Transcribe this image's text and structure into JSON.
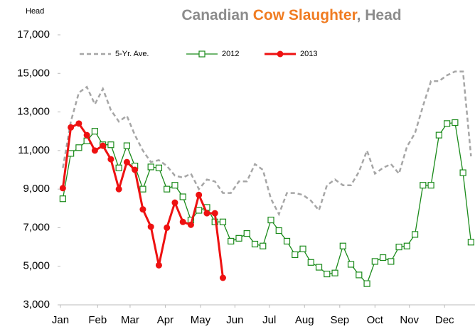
{
  "chart_data": {
    "type": "line",
    "title": [
      "Canadian ",
      "Cow Slaughter",
      ", Head"
    ],
    "title_colors": [
      "#8c8c8c",
      "#f07c22",
      "#8c8c8c"
    ],
    "y_label": "Head",
    "x": [
      1,
      2,
      3,
      4,
      5,
      6,
      7,
      8,
      9,
      10,
      11,
      12,
      13,
      14,
      15,
      16,
      17,
      18,
      19,
      20,
      21,
      22,
      23,
      24,
      25,
      26,
      27,
      28,
      29,
      30,
      31,
      32,
      33,
      34,
      35,
      36,
      37,
      38,
      39,
      40,
      41,
      42,
      43,
      44,
      45,
      46,
      47,
      48,
      49,
      50,
      51,
      52
    ],
    "xlim": [
      0.7,
      52.5
    ],
    "xticks": [
      {
        "value": 0.7,
        "label": "Jan"
      },
      {
        "value": 5.35,
        "label": "Feb"
      },
      {
        "value": 9.4,
        "label": "Mar"
      },
      {
        "value": 13.8,
        "label": "Apr"
      },
      {
        "value": 18.2,
        "label": "May"
      },
      {
        "value": 22.5,
        "label": "Jun"
      },
      {
        "value": 26.8,
        "label": "Jul"
      },
      {
        "value": 31.2,
        "label": "Aug"
      },
      {
        "value": 35.6,
        "label": "Sep"
      },
      {
        "value": 40,
        "label": "Oct"
      },
      {
        "value": 44.3,
        "label": "Nov"
      },
      {
        "value": 48.7,
        "label": "Dec"
      }
    ],
    "ylim": [
      3000,
      17000
    ],
    "yticks": [
      {
        "value": 3000,
        "label": "3,000"
      },
      {
        "value": 5000,
        "label": "5,000"
      },
      {
        "value": 7000,
        "label": "7,000"
      },
      {
        "value": 9000,
        "label": "9,000"
      },
      {
        "value": 11000,
        "label": "11,000"
      },
      {
        "value": 13000,
        "label": "13,000"
      },
      {
        "value": 15000,
        "label": "15,000"
      },
      {
        "value": 17000,
        "label": "17,000"
      }
    ],
    "grid": false,
    "legend": "top-left",
    "series": [
      {
        "name": "5-Yr. Ave.",
        "color": "#a6a6a6",
        "dash": true,
        "marker": "none",
        "values": [
          10100,
          12500,
          14000,
          14300,
          13400,
          14200,
          13100,
          12500,
          12800,
          11800,
          11000,
          10400,
          10500,
          10200,
          9700,
          9600,
          9800,
          9000,
          9500,
          9400,
          8800,
          8800,
          9400,
          9400,
          10300,
          10000,
          8500,
          7700,
          8800,
          8800,
          8700,
          8400,
          7900,
          9200,
          9500,
          9200,
          9200,
          9900,
          11000,
          9800,
          10100,
          10300,
          9800,
          11200,
          11900,
          13300,
          14600,
          14600,
          14900,
          15100,
          15100,
          10700
        ]
      },
      {
        "name": "2012",
        "color": "#1a8a1a",
        "dash": false,
        "marker": "square",
        "values": [
          8500,
          10850,
          11150,
          11500,
          12000,
          11300,
          11300,
          10100,
          11250,
          10200,
          9000,
          10150,
          10100,
          9000,
          9200,
          8600,
          7400,
          7900,
          8050,
          7300,
          7300,
          6300,
          6450,
          6700,
          6150,
          6050,
          7400,
          6850,
          6300,
          5600,
          5900,
          5200,
          4950,
          4600,
          4650,
          6050,
          5100,
          4550,
          4100,
          5250,
          5450,
          5250,
          6000,
          6050,
          6650,
          9200,
          9200,
          11800,
          12400,
          12450,
          9850,
          6250
        ]
      },
      {
        "name": "2013",
        "color": "#ee1111",
        "dash": false,
        "marker": "circle",
        "values": [
          9050,
          12200,
          12400,
          11800,
          11000,
          11250,
          10550,
          9000,
          10400,
          10000,
          7950,
          7050,
          5050,
          7000,
          8300,
          7300,
          7150,
          8700,
          7750,
          7750,
          4400,
          null,
          null,
          null,
          null,
          null,
          null,
          null,
          null,
          null,
          null,
          null,
          null,
          null,
          null,
          null,
          null,
          null,
          null,
          null,
          null,
          null,
          null,
          null,
          null,
          null,
          null,
          null,
          null,
          null,
          null,
          null
        ]
      }
    ]
  }
}
